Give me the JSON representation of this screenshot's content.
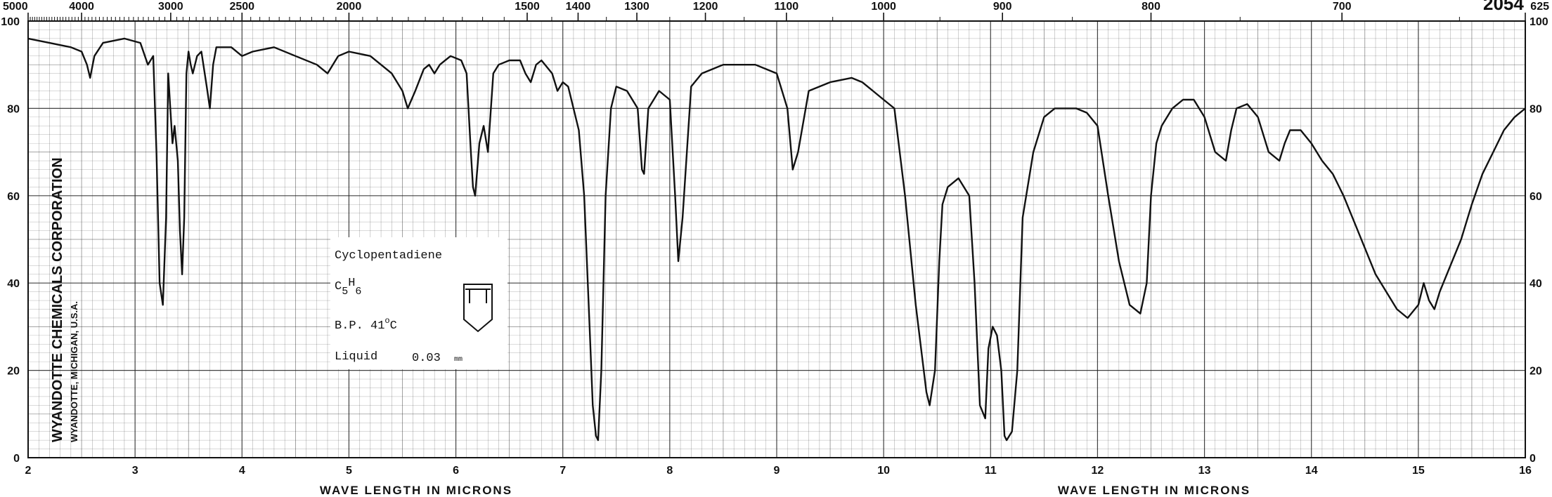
{
  "chart_data": {
    "type": "line",
    "corner_id": "2054",
    "xlabel": "WAVE LENGTH IN MICRONS",
    "x_ticks": [
      "2",
      "3",
      "4",
      "5",
      "6",
      "7",
      "8",
      "9",
      "10",
      "11",
      "12",
      "13",
      "14",
      "15",
      "16"
    ],
    "x_range": [
      2,
      16
    ],
    "top_ticks": [
      {
        "label": "5000",
        "value": 5000
      },
      {
        "label": "4000",
        "value": 4000
      },
      {
        "label": "3000",
        "value": 3000
      },
      {
        "label": "2500",
        "value": 2500
      },
      {
        "label": "2000",
        "value": 2000
      },
      {
        "label": "1500",
        "value": 1500
      },
      {
        "label": "1400",
        "value": 1400
      },
      {
        "label": "1300",
        "value": 1300
      },
      {
        "label": "1200",
        "value": 1200
      },
      {
        "label": "1100",
        "value": 1100
      },
      {
        "label": "1000",
        "value": 1000
      },
      {
        "label": "900",
        "value": 900
      },
      {
        "label": "800",
        "value": 800
      },
      {
        "label": "700",
        "value": 700
      },
      {
        "label": "625",
        "value": 625
      }
    ],
    "y_ticks_left": [
      "0",
      "20",
      "40",
      "60",
      "80",
      "100"
    ],
    "y_ticks_right": [
      "0",
      "20",
      "40",
      "60",
      "80",
      "100"
    ],
    "y_range": [
      0,
      100
    ],
    "grid": true,
    "series": [
      {
        "color": "#111111",
        "x": [
          2.0,
          2.2,
          2.4,
          2.5,
          2.55,
          2.58,
          2.62,
          2.7,
          2.9,
          3.05,
          3.12,
          3.17,
          3.2,
          3.23,
          3.26,
          3.29,
          3.31,
          3.33,
          3.35,
          3.37,
          3.4,
          3.42,
          3.44,
          3.46,
          3.48,
          3.5,
          3.52,
          3.54,
          3.58,
          3.62,
          3.67,
          3.7,
          3.73,
          3.76,
          3.8,
          3.9,
          4.0,
          4.1,
          4.3,
          4.5,
          4.7,
          4.8,
          4.9,
          5.0,
          5.2,
          5.4,
          5.5,
          5.55,
          5.62,
          5.7,
          5.75,
          5.8,
          5.85,
          5.95,
          6.05,
          6.1,
          6.14,
          6.16,
          6.18,
          6.22,
          6.26,
          6.3,
          6.35,
          6.4,
          6.5,
          6.6,
          6.65,
          6.7,
          6.75,
          6.8,
          6.9,
          6.95,
          7.0,
          7.05,
          7.1,
          7.15,
          7.2,
          7.25,
          7.28,
          7.31,
          7.33,
          7.36,
          7.4,
          7.45,
          7.5,
          7.6,
          7.7,
          7.74,
          7.76,
          7.8,
          7.85,
          7.9,
          8.0,
          8.05,
          8.08,
          8.12,
          8.2,
          8.3,
          8.5,
          8.7,
          8.8,
          8.9,
          9.0,
          9.1,
          9.15,
          9.2,
          9.3,
          9.5,
          9.7,
          9.8,
          9.9,
          10.0,
          10.1,
          10.2,
          10.3,
          10.4,
          10.43,
          10.48,
          10.52,
          10.55,
          10.6,
          10.7,
          10.8,
          10.85,
          10.9,
          10.95,
          10.98,
          11.02,
          11.06,
          11.1,
          11.13,
          11.15,
          11.2,
          11.25,
          11.3,
          11.4,
          11.5,
          11.6,
          11.7,
          11.8,
          11.9,
          12.0,
          12.1,
          12.2,
          12.3,
          12.4,
          12.46,
          12.5,
          12.55,
          12.6,
          12.7,
          12.8,
          12.9,
          13.0,
          13.1,
          13.2,
          13.25,
          13.3,
          13.4,
          13.5,
          13.6,
          13.7,
          13.75,
          13.8,
          13.9,
          14.0,
          14.1,
          14.2,
          14.3,
          14.4,
          14.5,
          14.6,
          14.7,
          14.8,
          14.9,
          15.0,
          15.05,
          15.1,
          15.15,
          15.2,
          15.3,
          15.4,
          15.5,
          15.6,
          15.7,
          15.8,
          15.9,
          16.0
        ],
        "y": [
          96,
          95,
          94,
          93,
          90,
          87,
          92,
          95,
          96,
          95,
          90,
          92,
          70,
          40,
          35,
          55,
          88,
          80,
          72,
          76,
          68,
          52,
          42,
          55,
          88,
          93,
          90,
          88,
          92,
          93,
          85,
          80,
          90,
          94,
          94,
          94,
          92,
          93,
          94,
          92,
          90,
          88,
          92,
          93,
          92,
          88,
          84,
          80,
          84,
          89,
          90,
          88,
          90,
          92,
          91,
          88,
          70,
          62,
          60,
          72,
          76,
          70,
          88,
          90,
          91,
          91,
          88,
          86,
          90,
          91,
          88,
          84,
          86,
          85,
          80,
          75,
          60,
          30,
          12,
          5,
          4,
          20,
          60,
          80,
          85,
          84,
          80,
          66,
          65,
          80,
          82,
          84,
          82,
          60,
          45,
          55,
          85,
          88,
          90,
          90,
          90,
          89,
          88,
          80,
          66,
          70,
          84,
          86,
          87,
          86,
          84,
          82,
          80,
          60,
          35,
          15,
          12,
          20,
          45,
          58,
          62,
          64,
          60,
          40,
          12,
          9,
          25,
          30,
          28,
          20,
          5,
          4,
          6,
          20,
          55,
          70,
          78,
          80,
          80,
          80,
          79,
          76,
          60,
          45,
          35,
          33,
          40,
          60,
          72,
          76,
          80,
          82,
          82,
          78,
          70,
          68,
          75,
          80,
          81,
          78,
          70,
          68,
          72,
          75,
          75,
          72,
          68,
          65,
          60,
          54,
          48,
          42,
          38,
          34,
          32,
          35,
          40,
          36,
          34,
          38,
          44,
          50,
          58,
          65,
          70,
          75,
          78,
          80
        ]
      }
    ],
    "sample_text": {
      "name": "Cyclopentadiene",
      "formula_c": "C",
      "formula_c_sub": "5",
      "formula_h": "H",
      "formula_h_sub": "6",
      "bp_prefix": "B.P. 41",
      "bp_deg": "o",
      "bp_suffix": "C",
      "state": "Liquid",
      "thickness": "0.03",
      "thickness_unit": "mm"
    },
    "corporation_text": {
      "line1": "WYANDOTTE CHEMICALS CORPORATION",
      "line2": "WYANDOTTE, MICHIGAN, U.S.A."
    }
  }
}
